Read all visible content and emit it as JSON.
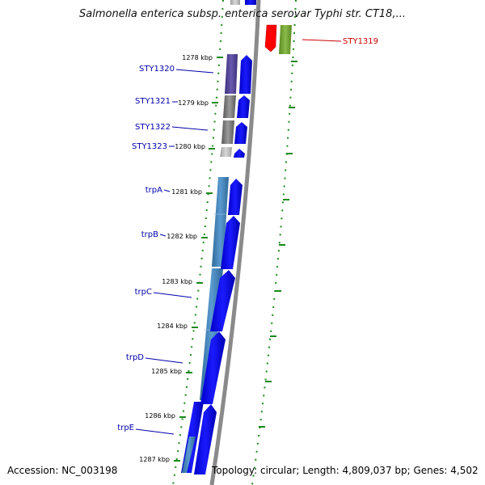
{
  "title": "Salmonella enterica subsp. enterica serovar Typhi str. CT18,...",
  "footer": {
    "accession": "Accession: NC_003198",
    "summary": "Topology: circular; Length: 4,809,037 bp; Genes: 4,502"
  },
  "colors": {
    "backbone": "#8a8a8a",
    "tick_green": "#1a8a1a",
    "cds_blue": "#0000ff",
    "label_blue": "#0000aa",
    "label_red": "#cc0000",
    "red_feature": "#ff0000",
    "olive_feature": "#6a9a2a",
    "trp_bar": "#4682b4",
    "sty1320_bar": "#4b3f8f"
  },
  "kbp_ticks": [
    "1278 kbp",
    "1279 kbp",
    "1280 kbp",
    "1281 kbp",
    "1282 kbp",
    "1283 kbp",
    "1284 kbp",
    "1285 kbp",
    "1286 kbp",
    "1287 kbp"
  ],
  "genes": [
    {
      "name": "STY1319",
      "strand": "reverse",
      "color": "red"
    },
    {
      "name": "STY1320",
      "strand": "forward",
      "color": "blue"
    },
    {
      "name": "STY1321",
      "strand": "forward",
      "color": "blue"
    },
    {
      "name": "STY1322",
      "strand": "forward",
      "color": "blue"
    },
    {
      "name": "STY1323",
      "strand": "forward",
      "color": "blue"
    },
    {
      "name": "trpA",
      "strand": "forward",
      "color": "blue"
    },
    {
      "name": "trpB",
      "strand": "forward",
      "color": "blue"
    },
    {
      "name": "trpC",
      "strand": "forward",
      "color": "blue"
    },
    {
      "name": "trpD",
      "strand": "forward",
      "color": "blue"
    },
    {
      "name": "trpE",
      "strand": "forward",
      "color": "blue"
    }
  ]
}
